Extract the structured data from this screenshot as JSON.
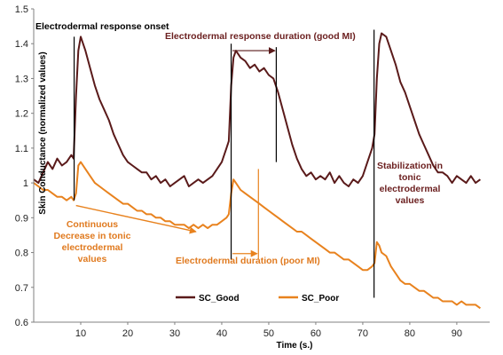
{
  "chart_data": {
    "type": "line",
    "title": "",
    "xlabel": "Time (s.)",
    "ylabel": "Skin Conductance (normalized values)",
    "xlim": [
      0,
      97
    ],
    "ylim": [
      0.6,
      1.5
    ],
    "x_ticks": [
      10,
      20,
      30,
      40,
      50,
      60,
      70,
      80,
      90
    ],
    "y_ticks": [
      0.6,
      0.7,
      0.8,
      0.9,
      1,
      1.1,
      1.2,
      1.3,
      1.4,
      1.5
    ],
    "y_tick_labels": [
      "0.6",
      "0.7",
      "0.8",
      "0.9",
      "1",
      "1.1",
      "1.2",
      "1.3",
      "1.4",
      "1.5"
    ],
    "grid": false,
    "legend_position": "bottom-center",
    "series": [
      {
        "name": "SC_Good",
        "color": "#5a1a1a",
        "points": [
          [
            0,
            1.01
          ],
          [
            1,
            1.0
          ],
          [
            2,
            1.03
          ],
          [
            3,
            1.06
          ],
          [
            4,
            1.04
          ],
          [
            5,
            1.07
          ],
          [
            6,
            1.05
          ],
          [
            7,
            1.06
          ],
          [
            8,
            1.08
          ],
          [
            8.5,
            1.07
          ],
          [
            9,
            1.25
          ],
          [
            9.5,
            1.38
          ],
          [
            10,
            1.42
          ],
          [
            11,
            1.38
          ],
          [
            12,
            1.33
          ],
          [
            13,
            1.28
          ],
          [
            14,
            1.24
          ],
          [
            15,
            1.21
          ],
          [
            16,
            1.18
          ],
          [
            17,
            1.14
          ],
          [
            18,
            1.11
          ],
          [
            19,
            1.08
          ],
          [
            20,
            1.06
          ],
          [
            21,
            1.05
          ],
          [
            22,
            1.04
          ],
          [
            23,
            1.03
          ],
          [
            24,
            1.03
          ],
          [
            25,
            1.01
          ],
          [
            26,
            1.02
          ],
          [
            27,
            1.0
          ],
          [
            28,
            1.01
          ],
          [
            29,
            0.99
          ],
          [
            30,
            1.0
          ],
          [
            31,
            1.01
          ],
          [
            32,
            1.02
          ],
          [
            33,
            0.99
          ],
          [
            34,
            1.0
          ],
          [
            35,
            1.01
          ],
          [
            36,
            1.0
          ],
          [
            37,
            1.01
          ],
          [
            38,
            1.02
          ],
          [
            39,
            1.04
          ],
          [
            40,
            1.06
          ],
          [
            41,
            1.1
          ],
          [
            41.5,
            1.12
          ],
          [
            42,
            1.28
          ],
          [
            42.5,
            1.36
          ],
          [
            43,
            1.38
          ],
          [
            44,
            1.36
          ],
          [
            45,
            1.35
          ],
          [
            46,
            1.33
          ],
          [
            47,
            1.34
          ],
          [
            48,
            1.32
          ],
          [
            49,
            1.33
          ],
          [
            50,
            1.31
          ],
          [
            51,
            1.3
          ],
          [
            52,
            1.26
          ],
          [
            53,
            1.21
          ],
          [
            54,
            1.16
          ],
          [
            55,
            1.11
          ],
          [
            56,
            1.07
          ],
          [
            57,
            1.04
          ],
          [
            58,
            1.02
          ],
          [
            59,
            1.03
          ],
          [
            60,
            1.01
          ],
          [
            61,
            1.02
          ],
          [
            62,
            1.01
          ],
          [
            63,
            1.03
          ],
          [
            64,
            1.0
          ],
          [
            65,
            1.02
          ],
          [
            66,
            1.0
          ],
          [
            67,
            0.99
          ],
          [
            68,
            1.01
          ],
          [
            69,
            1.0
          ],
          [
            70,
            1.02
          ],
          [
            71,
            1.06
          ],
          [
            72,
            1.1
          ],
          [
            72.5,
            1.14
          ],
          [
            73,
            1.3
          ],
          [
            73.5,
            1.4
          ],
          [
            74,
            1.43
          ],
          [
            75,
            1.42
          ],
          [
            76,
            1.38
          ],
          [
            77,
            1.34
          ],
          [
            78,
            1.29
          ],
          [
            79,
            1.26
          ],
          [
            80,
            1.22
          ],
          [
            81,
            1.18
          ],
          [
            82,
            1.14
          ],
          [
            83,
            1.11
          ],
          [
            84,
            1.08
          ],
          [
            85,
            1.05
          ],
          [
            86,
            1.03
          ],
          [
            87,
            1.03
          ],
          [
            88,
            1.02
          ],
          [
            89,
            1.0
          ],
          [
            90,
            1.02
          ],
          [
            91,
            1.01
          ],
          [
            92,
            1.0
          ],
          [
            93,
            1.02
          ],
          [
            94,
            1.0
          ],
          [
            95,
            1.01
          ]
        ]
      },
      {
        "name": "SC_Poor",
        "color": "#e8821e",
        "points": [
          [
            0,
            1.0
          ],
          [
            1,
            0.99
          ],
          [
            2,
            0.98
          ],
          [
            3,
            0.98
          ],
          [
            4,
            0.97
          ],
          [
            5,
            0.96
          ],
          [
            6,
            0.96
          ],
          [
            7,
            0.95
          ],
          [
            8,
            0.96
          ],
          [
            8.5,
            0.95
          ],
          [
            9,
            0.97
          ],
          [
            9.5,
            1.05
          ],
          [
            10,
            1.06
          ],
          [
            11,
            1.04
          ],
          [
            12,
            1.02
          ],
          [
            13,
            1.0
          ],
          [
            14,
            0.99
          ],
          [
            15,
            0.98
          ],
          [
            16,
            0.97
          ],
          [
            17,
            0.96
          ],
          [
            18,
            0.95
          ],
          [
            19,
            0.94
          ],
          [
            20,
            0.94
          ],
          [
            21,
            0.93
          ],
          [
            22,
            0.92
          ],
          [
            23,
            0.92
          ],
          [
            24,
            0.91
          ],
          [
            25,
            0.91
          ],
          [
            26,
            0.9
          ],
          [
            27,
            0.9
          ],
          [
            28,
            0.89
          ],
          [
            29,
            0.89
          ],
          [
            30,
            0.88
          ],
          [
            31,
            0.88
          ],
          [
            32,
            0.88
          ],
          [
            33,
            0.87
          ],
          [
            34,
            0.88
          ],
          [
            35,
            0.87
          ],
          [
            36,
            0.88
          ],
          [
            37,
            0.87
          ],
          [
            38,
            0.88
          ],
          [
            39,
            0.88
          ],
          [
            40,
            0.89
          ],
          [
            41,
            0.9
          ],
          [
            41.5,
            0.91
          ],
          [
            42,
            0.97
          ],
          [
            42.5,
            1.01
          ],
          [
            43,
            1.0
          ],
          [
            44,
            0.98
          ],
          [
            45,
            0.97
          ],
          [
            46,
            0.96
          ],
          [
            47,
            0.95
          ],
          [
            48,
            0.94
          ],
          [
            49,
            0.93
          ],
          [
            50,
            0.92
          ],
          [
            51,
            0.91
          ],
          [
            52,
            0.9
          ],
          [
            53,
            0.89
          ],
          [
            54,
            0.88
          ],
          [
            55,
            0.87
          ],
          [
            56,
            0.86
          ],
          [
            57,
            0.86
          ],
          [
            58,
            0.85
          ],
          [
            59,
            0.84
          ],
          [
            60,
            0.83
          ],
          [
            61,
            0.82
          ],
          [
            62,
            0.81
          ],
          [
            63,
            0.8
          ],
          [
            64,
            0.8
          ],
          [
            65,
            0.79
          ],
          [
            66,
            0.78
          ],
          [
            67,
            0.78
          ],
          [
            68,
            0.77
          ],
          [
            69,
            0.76
          ],
          [
            70,
            0.75
          ],
          [
            71,
            0.75
          ],
          [
            72,
            0.76
          ],
          [
            72.5,
            0.77
          ],
          [
            73,
            0.83
          ],
          [
            73.5,
            0.82
          ],
          [
            74,
            0.8
          ],
          [
            75,
            0.79
          ],
          [
            76,
            0.76
          ],
          [
            77,
            0.74
          ],
          [
            78,
            0.72
          ],
          [
            79,
            0.71
          ],
          [
            80,
            0.71
          ],
          [
            81,
            0.7
          ],
          [
            82,
            0.69
          ],
          [
            83,
            0.69
          ],
          [
            84,
            0.68
          ],
          [
            85,
            0.67
          ],
          [
            86,
            0.67
          ],
          [
            87,
            0.66
          ],
          [
            88,
            0.66
          ],
          [
            89,
            0.66
          ],
          [
            90,
            0.65
          ],
          [
            91,
            0.66
          ],
          [
            92,
            0.65
          ],
          [
            93,
            0.65
          ],
          [
            94,
            0.65
          ],
          [
            95,
            0.64
          ]
        ]
      }
    ],
    "annotations": [
      {
        "id": "onset",
        "lines": [
          "Electrodermal response onset"
        ],
        "style": "dark"
      },
      {
        "id": "duration-good",
        "lines": [
          "Electrodermal response duration (good MI)"
        ],
        "style": "good"
      },
      {
        "id": "stabilization",
        "lines": [
          "Stabilization in",
          "tonic",
          "electrodermal",
          "values"
        ],
        "style": "good"
      },
      {
        "id": "continuous",
        "lines": [
          "Continuous",
          "Decrease in tonic",
          "electrodermal",
          "values"
        ],
        "style": "poor"
      },
      {
        "id": "duration-poor",
        "lines": [
          "Electrodermal duration (poor MI)"
        ],
        "style": "poor"
      }
    ]
  }
}
